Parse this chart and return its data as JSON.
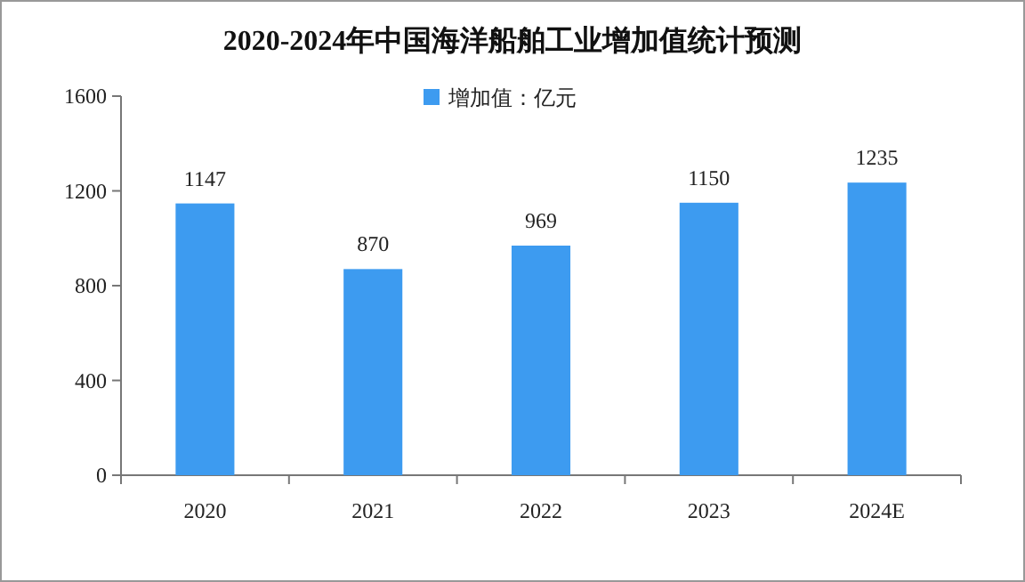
{
  "chart_data": {
    "type": "bar",
    "title": "2020-2024年中国海洋船舶工业增加值统计预测",
    "categories": [
      "2020",
      "2021",
      "2022",
      "2023",
      "2024E"
    ],
    "series": [
      {
        "name": "增加值：亿元",
        "color": "#3d9bf0",
        "values": [
          1147,
          870,
          969,
          1150,
          1235
        ]
      }
    ],
    "ylim": [
      0,
      1600
    ],
    "yticks": [
      0,
      400,
      800,
      1200,
      1600
    ],
    "data_labels": true,
    "legend": "top",
    "grid": false
  }
}
